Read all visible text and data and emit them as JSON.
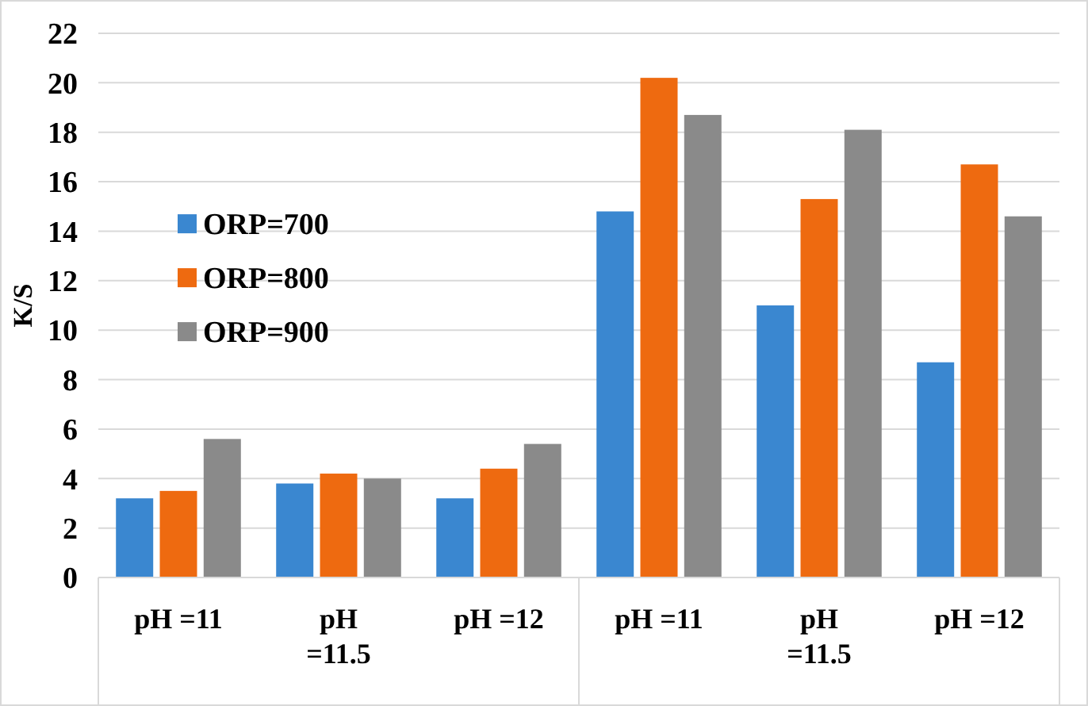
{
  "chart_data": {
    "type": "bar",
    "ylabel": "K/S",
    "categories": [
      "pH =11",
      "pH =11.5",
      "pH =12",
      "pH =11",
      "pH =11.5",
      "pH =12"
    ],
    "series": [
      {
        "name": "ORP=700",
        "color": "#3a87d0",
        "values": [
          3.2,
          3.8,
          3.2,
          14.8,
          11.0,
          8.7
        ]
      },
      {
        "name": "ORP=800",
        "color": "#ee6a10",
        "values": [
          3.5,
          4.2,
          4.4,
          20.2,
          15.3,
          16.7
        ]
      },
      {
        "name": "ORP=900",
        "color": "#8a8a8a",
        "values": [
          5.6,
          4.0,
          5.4,
          18.7,
          18.1,
          14.6
        ]
      }
    ],
    "ylim": [
      0,
      22
    ],
    "yticks": [
      0,
      2,
      4,
      6,
      8,
      10,
      12,
      14,
      16,
      18,
      20,
      22
    ],
    "grid": "y",
    "legend": "left"
  }
}
